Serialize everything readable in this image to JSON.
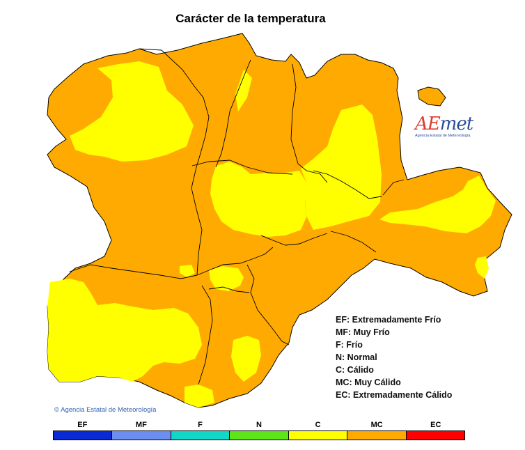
{
  "title": "Carácter de la temperatura",
  "logo": {
    "wordmark_ae": "AE",
    "wordmark_rest": "met",
    "subtitle": "Agencia Estatal de Meteorología"
  },
  "legend": [
    "EF: Extremadamente Frío",
    "MF: Muy Frío",
    "F: Frío",
    "N: Normal",
    "C: Cálido",
    "MC: Muy Cálido",
    "EC: Extremadamente Cálido"
  ],
  "copyright": "Agencia Estatal de Meteorología",
  "scale": [
    {
      "label": "EF",
      "color": "#0a2ad6"
    },
    {
      "label": "MF",
      "color": "#6b8ff0"
    },
    {
      "label": "F",
      "color": "#12d6c8"
    },
    {
      "label": "N",
      "color": "#5ee51a"
    },
    {
      "label": "C",
      "color": "#ffff00"
    },
    {
      "label": "MC",
      "color": "#ffaa00"
    },
    {
      "label": "EC",
      "color": "#ff0000"
    }
  ],
  "region_colors": {
    "MC": "#ffaa00",
    "C": "#ffff00"
  }
}
